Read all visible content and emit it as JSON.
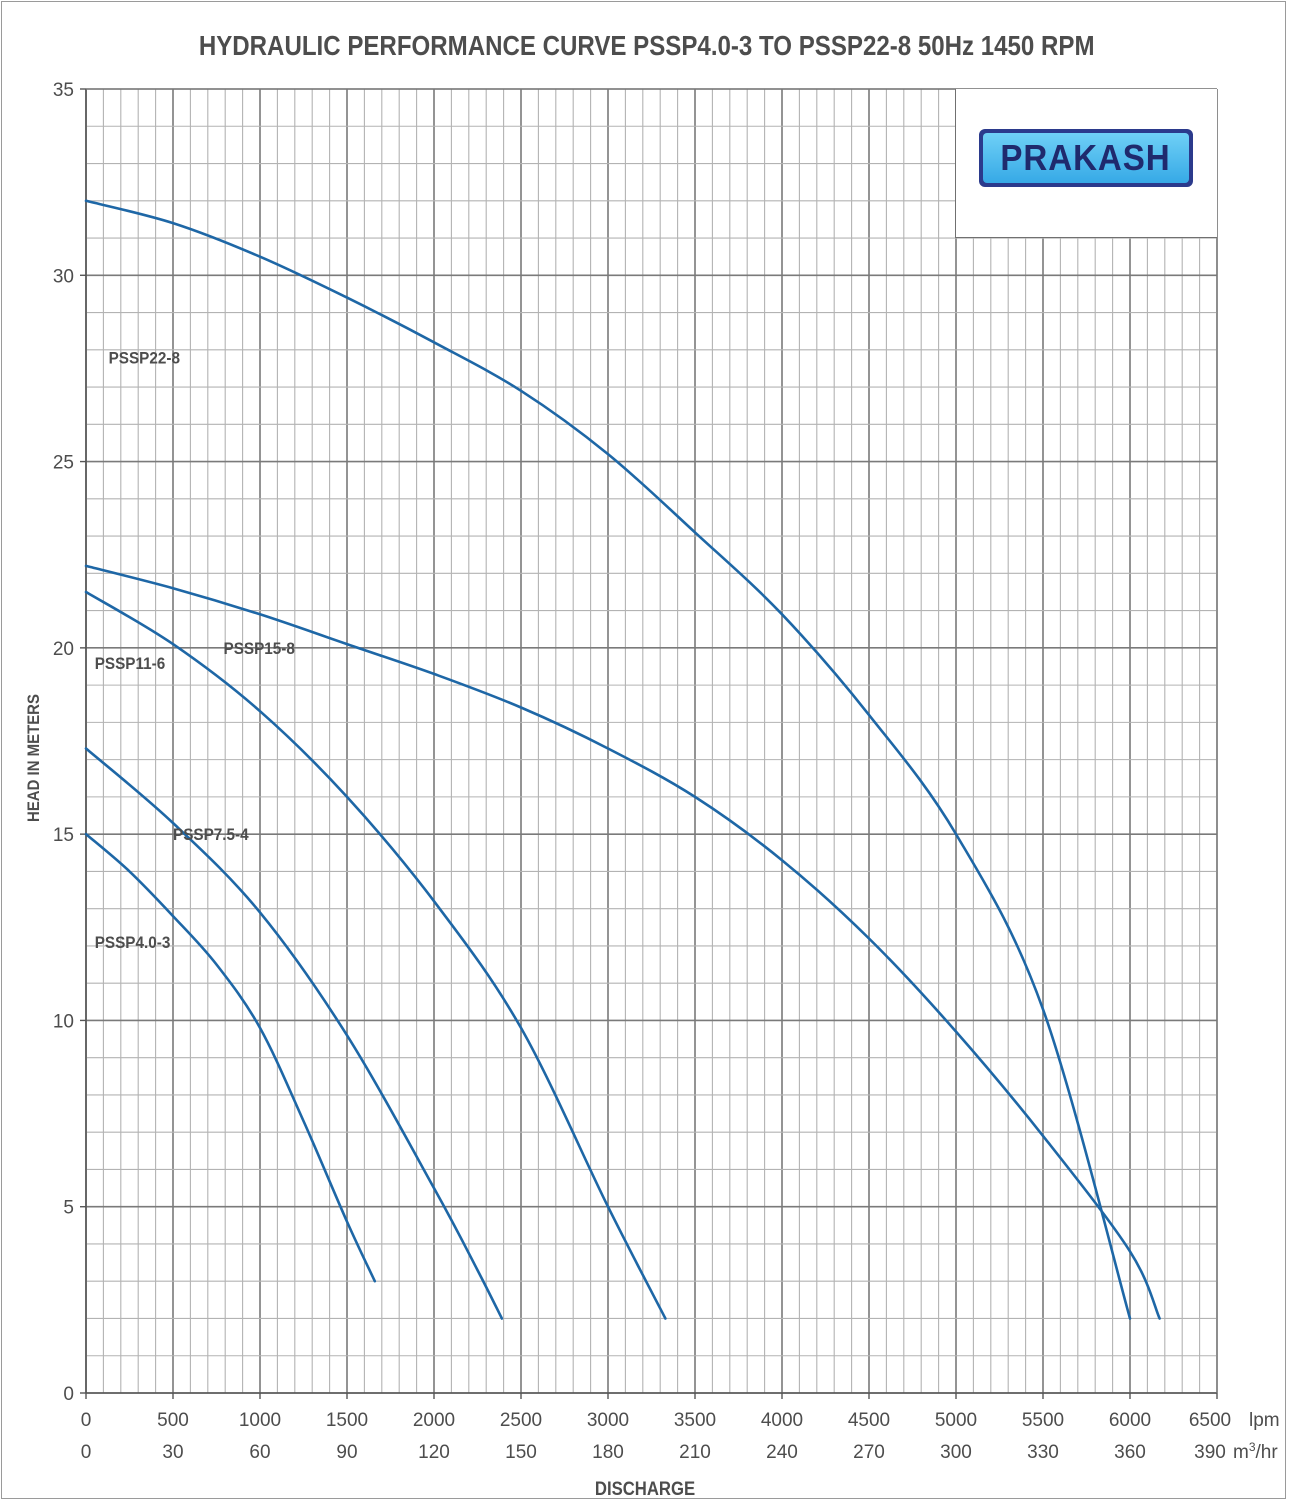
{
  "chart_data": {
    "type": "line",
    "title": "HYDRAULIC PERFORMANCE CURVE PSSP4.0-3 TO PSSP22-8 50Hz 1450 RPM",
    "xlabel": "DISCHARGE",
    "ylabel": "HEAD IN METERS",
    "xlim": [
      0,
      6500
    ],
    "ylim": [
      0,
      35
    ],
    "grid": true,
    "x_ticks_lpm": [
      "0",
      "500",
      "1000",
      "1500",
      "2000",
      "2500",
      "3000",
      "3500",
      "4000",
      "4500",
      "5000",
      "5500",
      "6000",
      "6500"
    ],
    "x_ticks_m3hr": [
      "0",
      "30",
      "60",
      "90",
      "120",
      "150",
      "180",
      "210",
      "240",
      "270",
      "300",
      "330",
      "360",
      "390"
    ],
    "x_unit_lpm": "lpm",
    "x_unit_m3hr": "m",
    "x_unit_m3hr_sup": "3",
    "x_unit_m3hr_tail": "/hr",
    "y_ticks": [
      "0",
      "5",
      "10",
      "15",
      "20",
      "25",
      "30",
      "35"
    ],
    "series": [
      {
        "name": "PSSP4.0-3",
        "x": [
          0,
          250,
          500,
          750,
          1000,
          1250,
          1500,
          1660
        ],
        "y": [
          15.0,
          14.0,
          12.8,
          11.5,
          9.8,
          7.3,
          4.6,
          3.0
        ]
      },
      {
        "name": "PSSP7.5-4",
        "x": [
          0,
          500,
          1000,
          1500,
          2000,
          2250,
          2390
        ],
        "y": [
          17.3,
          15.3,
          12.9,
          9.6,
          5.5,
          3.3,
          2.0
        ]
      },
      {
        "name": "PSSP11-6",
        "x": [
          0,
          500,
          1000,
          1500,
          2000,
          2500,
          3000,
          3330
        ],
        "y": [
          21.5,
          20.1,
          18.3,
          16.0,
          13.2,
          9.8,
          5.0,
          2.0
        ]
      },
      {
        "name": "PSSP15-8",
        "x": [
          0,
          500,
          1000,
          1500,
          2000,
          2500,
          3000,
          3500,
          4000,
          4500,
          5000,
          5500,
          6000,
          6170
        ],
        "y": [
          22.2,
          21.6,
          20.9,
          20.1,
          19.3,
          18.4,
          17.3,
          16.0,
          14.3,
          12.2,
          9.7,
          6.9,
          3.8,
          2.0
        ]
      },
      {
        "name": "PSSP22-8",
        "x": [
          0,
          500,
          1000,
          1500,
          2000,
          2500,
          3000,
          3500,
          4000,
          4500,
          5000,
          5500,
          6000
        ],
        "y": [
          32.0,
          31.4,
          30.5,
          29.4,
          28.2,
          26.9,
          25.2,
          23.1,
          20.9,
          18.2,
          15.0,
          10.3,
          2.0
        ]
      }
    ],
    "line_color": "#1e67a6",
    "brand": "PRAKASH"
  }
}
